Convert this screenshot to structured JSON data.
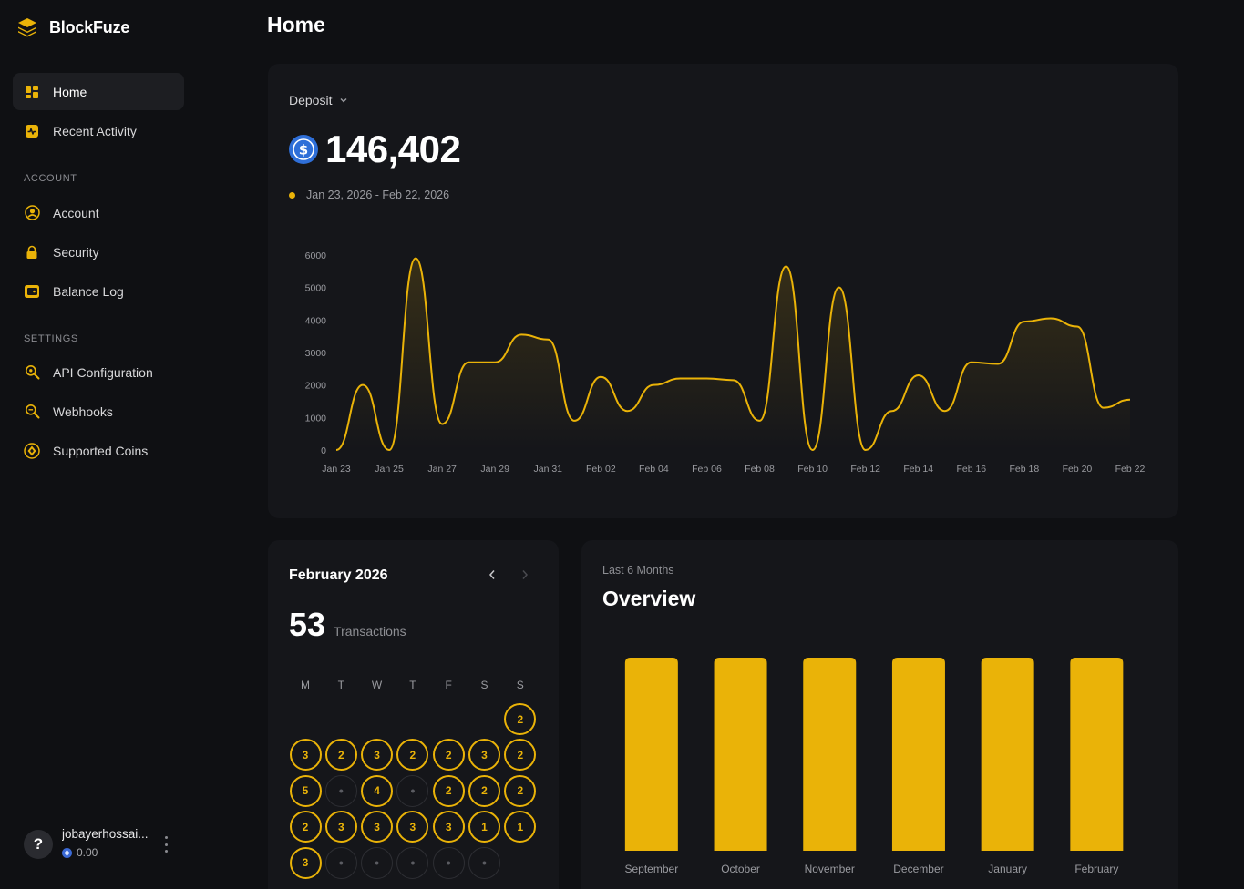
{
  "brand": {
    "name": "BlockFuze",
    "accent": "#eab308"
  },
  "nav": {
    "main": [
      {
        "label": "Home",
        "icon": "dashboard-icon",
        "active": true
      },
      {
        "label": "Recent Activity",
        "icon": "activity-icon",
        "active": false
      }
    ],
    "account_header": "ACCOUNT",
    "account": [
      {
        "label": "Account",
        "icon": "user-circle-icon"
      },
      {
        "label": "Security",
        "icon": "lock-icon"
      },
      {
        "label": "Balance Log",
        "icon": "wallet-icon"
      }
    ],
    "settings_header": "SETTINGS",
    "settings": [
      {
        "label": "API Configuration",
        "icon": "key-search-icon"
      },
      {
        "label": "Webhooks",
        "icon": "webhook-icon"
      },
      {
        "label": "Supported Coins",
        "icon": "coin-icon"
      }
    ]
  },
  "user": {
    "avatar": "?",
    "name": "jobayerhossai...",
    "balance": "0.00"
  },
  "page": {
    "title": "Home"
  },
  "deposit": {
    "dropdown_label": "Deposit",
    "amount": "146,402",
    "range": "Jan 23, 2026 - Feb 22, 2026"
  },
  "calendar": {
    "title": "February 2026",
    "count": "53",
    "count_label": "Transactions",
    "weekdays": [
      "M",
      "T",
      "W",
      "T",
      "F",
      "S",
      "S"
    ],
    "weeks": [
      [
        null,
        null,
        null,
        null,
        null,
        null,
        "2"
      ],
      [
        "3",
        "2",
        "3",
        "2",
        "2",
        "3",
        "2"
      ],
      [
        "5",
        "•",
        "4",
        "•",
        "2",
        "2",
        "2"
      ],
      [
        "2",
        "3",
        "3",
        "3",
        "3",
        "1",
        "1"
      ],
      [
        "3",
        "•",
        "•",
        "•",
        "•",
        "•",
        null
      ]
    ]
  },
  "overview": {
    "subtitle": "Last 6 Months",
    "title": "Overview"
  },
  "chart_data": [
    {
      "type": "area",
      "title": "",
      "xlabel": "",
      "ylabel": "",
      "ylim": [
        0,
        6000
      ],
      "yticks": [
        "0",
        "1000",
        "2000",
        "3000",
        "4000",
        "5000",
        "6000"
      ],
      "xticks": [
        "Jan 23",
        "Jan 25",
        "Jan 27",
        "Jan 29",
        "Jan 31",
        "Feb 02",
        "Feb 04",
        "Feb 06",
        "Feb 08",
        "Feb 10",
        "Feb 12",
        "Feb 14",
        "Feb 16",
        "Feb 18",
        "Feb 20",
        "Feb 22"
      ],
      "x": [
        "Jan 23",
        "Jan 24",
        "Jan 25",
        "Jan 26",
        "Jan 27",
        "Jan 28",
        "Jan 29",
        "Jan 30",
        "Jan 31",
        "Feb 01",
        "Feb 02",
        "Feb 03",
        "Feb 04",
        "Feb 05",
        "Feb 06",
        "Feb 07",
        "Feb 08",
        "Feb 09",
        "Feb 10",
        "Feb 11",
        "Feb 12",
        "Feb 13",
        "Feb 14",
        "Feb 15",
        "Feb 16",
        "Feb 17",
        "Feb 18",
        "Feb 19",
        "Feb 20",
        "Feb 21",
        "Feb 22"
      ],
      "values": [
        0,
        2000,
        0,
        5900,
        800,
        2700,
        2700,
        3550,
        3400,
        900,
        2250,
        1200,
        2000,
        2200,
        2200,
        2150,
        900,
        5650,
        0,
        5000,
        0,
        1200,
        2300,
        1200,
        2700,
        2650,
        3950,
        4050,
        3800,
        1300,
        1550
      ],
      "color": "#eab308",
      "grid": false
    },
    {
      "type": "bar",
      "title": "",
      "categories": [
        "September",
        "October",
        "November",
        "December",
        "January",
        "February"
      ],
      "values": [
        100,
        100,
        100,
        100,
        100,
        100
      ],
      "ylim": [
        0,
        100
      ],
      "color": "#eab308",
      "grid": false
    }
  ]
}
